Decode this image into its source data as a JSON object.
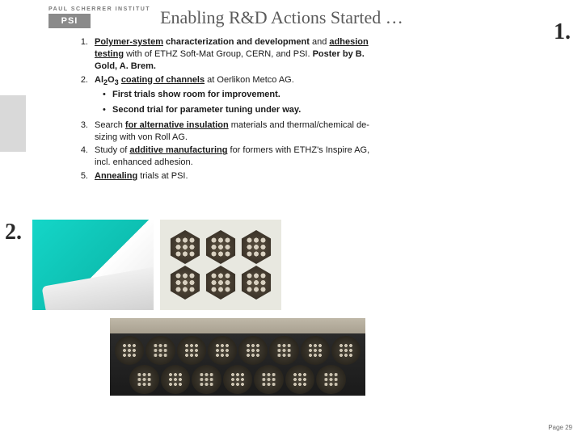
{
  "logo": {
    "institute": "PAUL SCHERRER INSTITUT",
    "abbr": "PSI"
  },
  "title": "Enabling R&D Actions Started …",
  "callouts": {
    "one": "1.",
    "two": "2."
  },
  "items": [
    {
      "num": "1.",
      "html": "<b><span class='u'>Polymer-system</span> characterization and development</b> and <b><span class='u'>adhesion testing</span></b> with of ETHZ Soft-Mat Group, CERN, and PSI. <b>Poster by B. Gold, A. Brem.</b>"
    },
    {
      "num": "2.",
      "html": "<b>Al<sub>2</sub>O<sub>3</sub> <span class='u'>coating of channels</span></b> at Oerlikon Metco AG.",
      "bullets": [
        "<b>First trials show room for improvement.</b>",
        "<b>Second trial for parameter tuning under way.</b>"
      ]
    },
    {
      "num": "3.",
      "html": "Search <b><span class='u'>for alternative insulation</span></b> materials and thermal/chemical de-sizing with von Roll AG."
    },
    {
      "num": "4.",
      "html": "Study of <b><span class='u'>additive manufacturing</span></b> for formers with ETHZ's Inspire AG, incl. enhanced adhesion."
    },
    {
      "num": "5.",
      "html": "<b><span class='u'>Annealing</span></b> trials at PSI."
    }
  ],
  "page": "Page 29",
  "colors": {
    "title": "#5a5a5a",
    "text": "#1a1a1a",
    "logo_box": "#8a8a8a",
    "sidebar": "#d9d9d9",
    "teal": "#14d6c8"
  }
}
